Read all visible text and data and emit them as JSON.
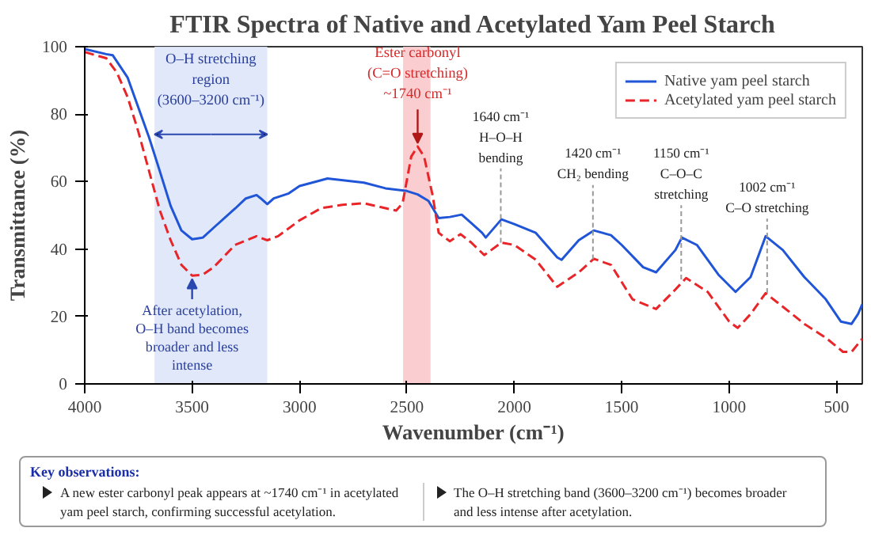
{
  "chart_data": {
    "type": "line",
    "title": "FTIR Spectra of Native and Acetylated Yam Peel Starch",
    "xlabel": "Wavenumber (cm⁻¹)",
    "ylabel": "Transmittance (%)",
    "xlim": [
      4000,
      380
    ],
    "ylim": [
      0,
      100
    ],
    "xticks": [
      4000,
      3500,
      3000,
      2500,
      2000,
      1500,
      1000,
      500
    ],
    "yticks": [
      0,
      20,
      40,
      60,
      80,
      100
    ],
    "grid": false,
    "legend": "top right",
    "marker": "none",
    "series": [
      {
        "name": "Native yam peel starch",
        "color": "#1f55d6",
        "line_style": "solid",
        "x": [
          4000,
          3900,
          3870,
          3800,
          3700,
          3650,
          3600,
          3550,
          3500,
          3450,
          3400,
          3300,
          3250,
          3200,
          3180,
          3150,
          3120,
          3050,
          3000,
          2900,
          2870,
          2700,
          2600,
          2500,
          2450,
          2400,
          2352,
          2300,
          2245,
          2200,
          2150,
          2133,
          2060,
          2000,
          1900,
          1800,
          1780,
          1700,
          1630,
          1550,
          1500,
          1400,
          1340,
          1250,
          1220,
          1150,
          1050,
          970,
          900,
          830,
          750,
          650,
          550,
          480,
          430,
          400,
          380
        ],
        "values": [
          99.3,
          97.8,
          97.5,
          90.8,
          73,
          63,
          52.8,
          45.5,
          42.9,
          43.4,
          46.3,
          52,
          55,
          56,
          55,
          53.3,
          55,
          56.5,
          58.7,
          60.4,
          60.9,
          59.7,
          58,
          57.2,
          56.2,
          54.3,
          49.2,
          49.5,
          50.2,
          47.7,
          44.8,
          43.4,
          48.8,
          47.4,
          44.8,
          37.5,
          36.8,
          42.6,
          45.5,
          44.1,
          41.2,
          34.6,
          33.1,
          39.7,
          43.4,
          41.2,
          32.4,
          27.3,
          31.7,
          43.8,
          39.7,
          31.7,
          25.1,
          18.5,
          17.8,
          20.7,
          23.6
        ]
      },
      {
        "name": "Acetylated yam peel starch",
        "color": "#e8262a",
        "line_style": "dashed",
        "x": [
          4000,
          3900,
          3850,
          3800,
          3750,
          3700,
          3650,
          3600,
          3550,
          3500,
          3450,
          3400,
          3300,
          3200,
          3150,
          3100,
          3000,
          2900,
          2800,
          2700,
          2600,
          2550,
          2520,
          2480,
          2450,
          2420,
          2380,
          2352,
          2300,
          2250,
          2200,
          2140,
          2060,
          2000,
          1900,
          1800,
          1700,
          1630,
          1550,
          1450,
          1340,
          1250,
          1200,
          1100,
          1000,
          960,
          900,
          830,
          750,
          650,
          550,
          470,
          430,
          380
        ],
        "values": [
          98.4,
          96.6,
          92.3,
          85,
          74.7,
          63,
          51.4,
          42.6,
          35.3,
          32.1,
          32.4,
          34.6,
          41.2,
          43.8,
          42.6,
          43.8,
          48.5,
          52.1,
          53.1,
          53.6,
          52.1,
          51.4,
          53.6,
          67.4,
          70.4,
          67.4,
          55.8,
          44.8,
          42.3,
          44.4,
          41.9,
          38.2,
          41.9,
          41.2,
          36.8,
          28.8,
          33.1,
          37.1,
          35.3,
          25.1,
          22.2,
          28,
          31.4,
          27.3,
          18.5,
          16.6,
          20.7,
          26.9,
          22.9,
          17.8,
          13.7,
          9.5,
          9.5,
          13.4
        ]
      }
    ],
    "bands": [
      {
        "axis": "x",
        "from": 3675,
        "to": 3150,
        "label": "O–H stretching\nregion\n(3600–3200 cm⁻¹)",
        "color": "#dde6fa"
      },
      {
        "axis": "x",
        "from": 2518,
        "to": 2390,
        "color": "#f9c9cb"
      }
    ],
    "annotations": [
      {
        "text": "Ester carbonyl\n(C=O stretching)\n~1740 cm⁻¹",
        "x": 2450,
        "y": 70.4
      },
      {
        "text": "After acetylation,\nO–H band becomes\nbroader and less\nintense",
        "x": 3500,
        "y": 32.1
      },
      {
        "text": "1640 cm⁻¹\nH–O–H\nbending",
        "x": 2063,
        "y": 41.9
      },
      {
        "text": "1420 cm⁻¹\nCH₂ bending",
        "x": 1634,
        "y": 37
      },
      {
        "text": "1150 cm⁻¹\nC–O–C\nstretching",
        "x": 1223,
        "y": 31
      },
      {
        "text": "1002 cm⁻¹\nC–O stretching",
        "x": 823,
        "y": 27
      },
      "Key observations:",
      "A new ester carbonyl peak appears at ~1740 cm⁻¹ in acetylated yam peel starch, confirming successful acetylation.",
      "The O–H stretching band (3600–3200 cm⁻¹) becomes broader and less intense after acetylation."
    ]
  }
}
